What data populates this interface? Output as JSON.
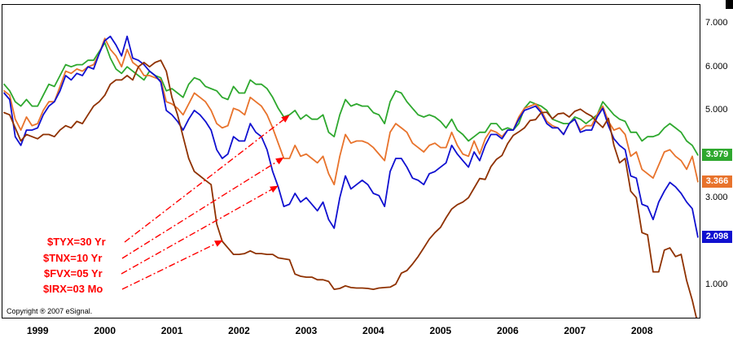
{
  "meta": {
    "copyright": "Copyright ® 2007 eSignal."
  },
  "chart_data": {
    "type": "line",
    "title": "",
    "xlabel": "",
    "ylabel": "",
    "grid": false,
    "x_start": "1998-07",
    "x_unit": "month",
    "ylim": [
      0.25,
      7.42
    ],
    "annotation_color": "#FF0000",
    "badge_text_color": "#FFFFFF",
    "x_labels": [
      "1999",
      "2000",
      "2001",
      "2002",
      "2003",
      "2004",
      "2005",
      "2006",
      "2007",
      "2008"
    ],
    "y_ticks": [
      {
        "value": 7.0,
        "label": "7.000"
      },
      {
        "value": 6.0,
        "label": "6.000"
      },
      {
        "value": 5.0,
        "label": "5.000"
      },
      {
        "value": 3.0,
        "label": "3.000"
      },
      {
        "value": 1.0,
        "label": "1.000"
      }
    ],
    "series": [
      {
        "id": "tyx",
        "name": "$TYX=30 Yr",
        "color": "#2EA82E",
        "last_label": "3.979",
        "values": [
          5.6,
          5.45,
          5.2,
          5.1,
          5.25,
          5.1,
          5.1,
          5.35,
          5.6,
          5.55,
          5.8,
          6.05,
          6.0,
          6.05,
          6.05,
          6.15,
          6.15,
          6.35,
          6.55,
          6.2,
          5.95,
          5.85,
          6.0,
          5.9,
          5.8,
          5.7,
          5.9,
          5.8,
          5.75,
          5.45,
          5.5,
          5.4,
          5.3,
          5.6,
          5.75,
          5.7,
          5.55,
          5.5,
          5.45,
          5.3,
          5.25,
          5.55,
          5.4,
          5.4,
          5.7,
          5.6,
          5.6,
          5.5,
          5.3,
          5.05,
          4.85,
          4.9,
          5.0,
          4.8,
          4.9,
          4.8,
          4.8,
          4.9,
          4.5,
          4.4,
          4.9,
          5.25,
          5.1,
          5.15,
          5.1,
          5.1,
          4.95,
          4.9,
          4.7,
          5.2,
          5.45,
          5.4,
          5.2,
          5.05,
          4.9,
          4.85,
          4.9,
          4.85,
          4.75,
          4.6,
          4.8,
          4.55,
          4.45,
          4.3,
          4.4,
          4.5,
          4.5,
          4.7,
          4.7,
          4.55,
          4.6,
          4.55,
          4.7,
          5.05,
          5.2,
          5.15,
          5.1,
          5.0,
          4.8,
          4.75,
          4.7,
          4.7,
          4.85,
          4.8,
          4.7,
          4.8,
          4.9,
          5.2,
          5.05,
          4.9,
          4.8,
          4.75,
          4.5,
          4.5,
          4.3,
          4.4,
          4.4,
          4.45,
          4.6,
          4.7,
          4.6,
          4.5,
          4.3,
          4.2,
          3.979
        ]
      },
      {
        "id": "tnx",
        "name": "$TNX=10 Yr",
        "color": "#E8732C",
        "last_label": "3.366",
        "values": [
          5.45,
          5.35,
          4.8,
          4.55,
          4.85,
          4.65,
          4.7,
          5.0,
          5.2,
          5.2,
          5.55,
          5.9,
          5.85,
          5.95,
          5.9,
          6.0,
          6.05,
          6.3,
          6.65,
          6.4,
          6.25,
          6.0,
          6.4,
          6.1,
          6.0,
          5.8,
          5.8,
          5.75,
          5.7,
          5.2,
          5.15,
          5.05,
          4.9,
          5.15,
          5.4,
          5.3,
          5.2,
          5.0,
          4.7,
          4.6,
          4.65,
          5.05,
          5.0,
          4.9,
          5.3,
          5.2,
          5.1,
          4.9,
          4.6,
          4.25,
          3.9,
          3.9,
          4.2,
          3.95,
          4.0,
          3.9,
          3.8,
          3.95,
          3.55,
          3.3,
          3.95,
          4.45,
          4.25,
          4.3,
          4.3,
          4.25,
          4.15,
          4.0,
          3.85,
          4.5,
          4.7,
          4.6,
          4.5,
          4.25,
          4.15,
          4.05,
          4.2,
          4.25,
          4.15,
          4.15,
          4.5,
          4.2,
          4.0,
          3.95,
          4.3,
          4.0,
          4.35,
          4.55,
          4.5,
          4.4,
          4.55,
          4.55,
          4.85,
          5.05,
          5.1,
          5.15,
          5.0,
          4.75,
          4.65,
          4.6,
          4.45,
          4.7,
          4.8,
          4.55,
          4.65,
          4.65,
          4.9,
          5.1,
          4.75,
          4.55,
          4.6,
          4.45,
          3.95,
          4.05,
          3.65,
          3.55,
          3.45,
          3.75,
          4.05,
          4.1,
          3.95,
          3.85,
          3.65,
          3.95,
          3.366
        ]
      },
      {
        "id": "fvx",
        "name": "$FVX=05 Yr",
        "color": "#1010D0",
        "last_label": "2.098",
        "values": [
          5.4,
          5.25,
          4.4,
          4.2,
          4.55,
          4.55,
          4.6,
          4.9,
          5.1,
          5.2,
          5.45,
          5.8,
          5.7,
          5.85,
          5.8,
          6.0,
          5.95,
          6.3,
          6.6,
          6.7,
          6.5,
          6.25,
          6.7,
          6.2,
          6.15,
          6.05,
          5.9,
          5.8,
          5.65,
          5.0,
          4.9,
          4.75,
          4.55,
          4.8,
          5.0,
          4.9,
          4.75,
          4.55,
          4.1,
          3.9,
          4.0,
          4.4,
          4.3,
          4.3,
          4.7,
          4.5,
          4.4,
          4.1,
          3.6,
          3.25,
          2.8,
          2.85,
          3.1,
          2.9,
          3.0,
          2.85,
          2.7,
          2.9,
          2.5,
          2.3,
          3.0,
          3.5,
          3.2,
          3.3,
          3.4,
          3.3,
          3.1,
          3.05,
          2.8,
          3.6,
          3.9,
          3.9,
          3.7,
          3.45,
          3.4,
          3.3,
          3.55,
          3.6,
          3.7,
          3.8,
          4.2,
          4.0,
          3.85,
          3.7,
          4.05,
          3.85,
          4.2,
          4.45,
          4.45,
          4.35,
          4.55,
          4.55,
          4.8,
          5.0,
          5.05,
          5.1,
          4.95,
          4.7,
          4.6,
          4.6,
          4.45,
          4.7,
          4.8,
          4.5,
          4.55,
          4.55,
          4.85,
          5.05,
          4.65,
          4.35,
          4.2,
          4.1,
          3.5,
          3.45,
          2.85,
          2.8,
          2.5,
          2.9,
          3.15,
          3.35,
          3.25,
          3.1,
          2.9,
          2.75,
          2.098
        ]
      },
      {
        "id": "irx",
        "name": "$IRX=03 Mo",
        "color": "#8F3100",
        "last_label": null,
        "values": [
          4.95,
          4.9,
          4.6,
          4.3,
          4.45,
          4.4,
          4.35,
          4.45,
          4.45,
          4.4,
          4.55,
          4.65,
          4.6,
          4.75,
          4.7,
          4.9,
          5.1,
          5.2,
          5.35,
          5.6,
          5.7,
          5.7,
          5.8,
          5.7,
          6.0,
          6.1,
          6.0,
          6.1,
          6.15,
          5.9,
          5.3,
          4.9,
          4.4,
          3.9,
          3.6,
          3.5,
          3.4,
          3.3,
          2.4,
          2.0,
          1.85,
          1.7,
          1.7,
          1.72,
          1.78,
          1.72,
          1.72,
          1.7,
          1.7,
          1.62,
          1.6,
          1.58,
          1.25,
          1.2,
          1.18,
          1.18,
          1.12,
          1.12,
          1.08,
          0.9,
          0.92,
          0.98,
          0.94,
          0.93,
          0.93,
          0.92,
          0.9,
          0.93,
          0.94,
          0.95,
          1.02,
          1.27,
          1.33,
          1.48,
          1.65,
          1.85,
          2.05,
          2.2,
          2.32,
          2.54,
          2.74,
          2.84,
          2.9,
          3.0,
          3.22,
          3.44,
          3.42,
          3.71,
          3.88,
          3.97,
          4.24,
          4.43,
          4.51,
          4.6,
          4.77,
          4.79,
          4.95,
          4.96,
          4.81,
          4.92,
          4.94,
          4.85,
          4.98,
          5.03,
          4.94,
          4.87,
          4.73,
          4.61,
          4.82,
          4.2,
          3.8,
          3.9,
          3.15,
          3.0,
          2.2,
          2.15,
          1.3,
          1.3,
          1.8,
          1.85,
          1.65,
          1.7,
          1.1,
          0.65,
          0.1
        ]
      }
    ]
  }
}
